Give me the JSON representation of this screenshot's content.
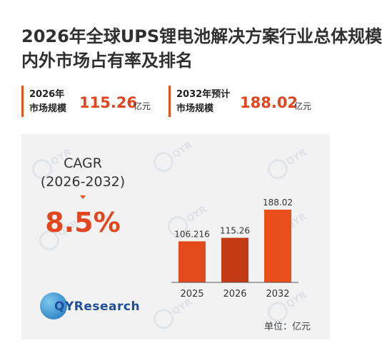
{
  "title_line1": "2026年全球UPS锂电池解决方案行业总体规模",
  "title_line2": "内外市场占有率及排名",
  "stats": [
    {
      "label_line1": "2026年",
      "label_line2": "市场规模",
      "value": "115.26",
      "unit": "亿元"
    },
    {
      "label_line1": "2032年预计",
      "label_line2": "市场规模",
      "value": "188.02",
      "unit": "亿元"
    }
  ],
  "cagr": {
    "label": "CAGR",
    "period": "(2026-2032)",
    "value": "8.5%"
  },
  "logo": {
    "text": "QYResearch"
  },
  "unit_note": "单位：亿元",
  "colors": {
    "accent": "#e3461f",
    "bar_2025": "#e24a1c",
    "bar_2026": "#c33a15",
    "bar_2032": "#ea4e1b"
  },
  "chart_data": {
    "type": "bar",
    "categories": [
      "2025",
      "2026",
      "2032"
    ],
    "values": [
      106.216,
      115.26,
      188.02
    ],
    "data_labels": [
      "106.216",
      "115.26",
      "188.02"
    ],
    "title": "",
    "xlabel": "",
    "ylabel": "",
    "ylim": [
      0,
      200
    ],
    "grid": false
  }
}
